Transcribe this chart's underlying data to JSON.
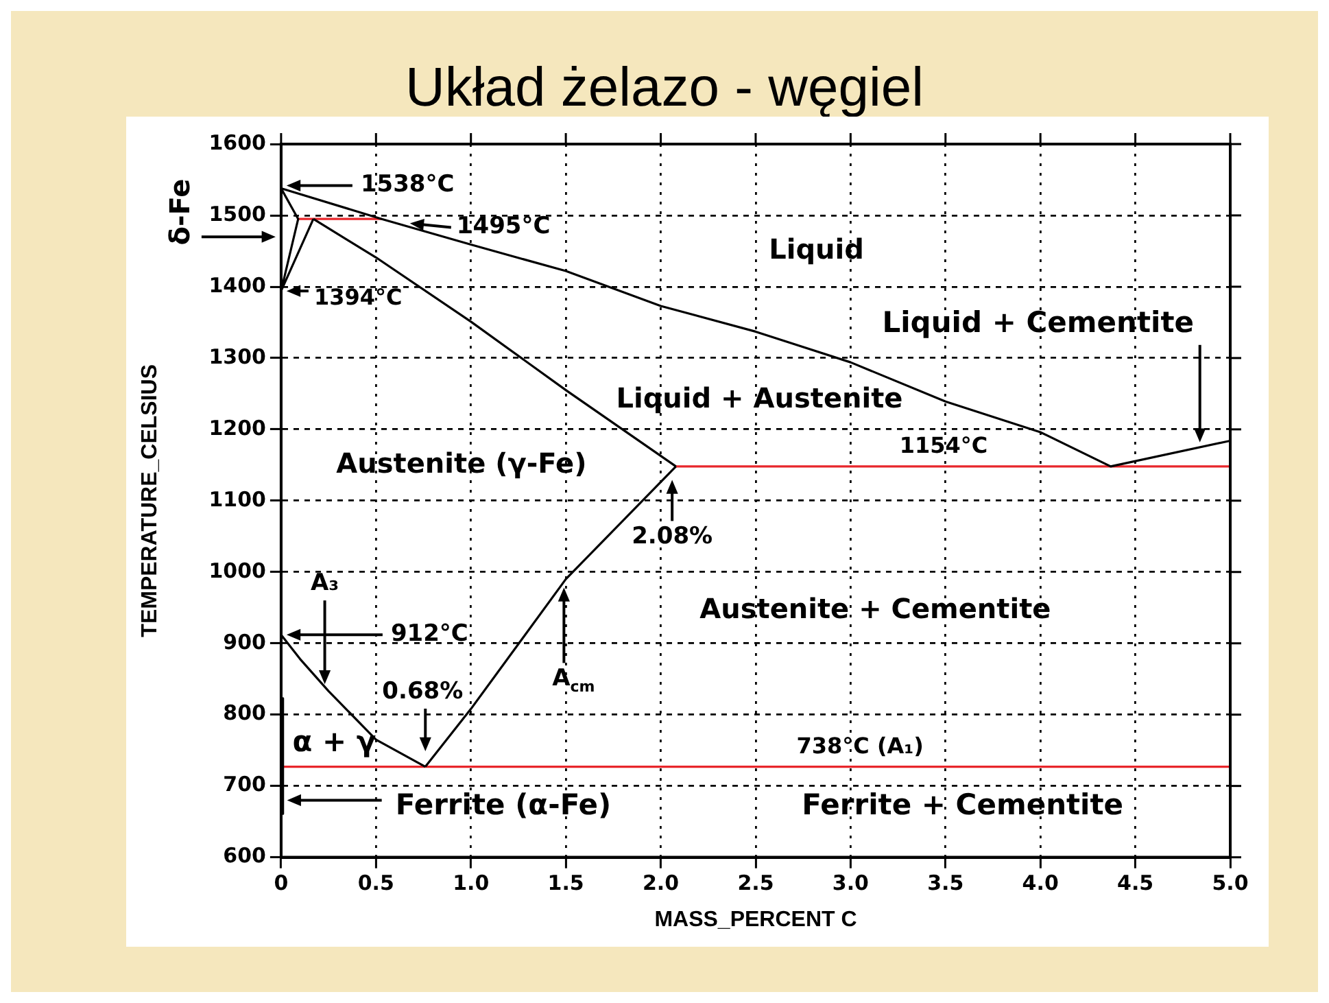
{
  "chart_data": {
    "type": "line",
    "title": "Układ żelazo - węgiel",
    "xlabel": "MASS_PERCENT C",
    "ylabel": "TEMPERATURE_CELSIUS",
    "xlim": [
      0,
      5
    ],
    "xticks": [
      0,
      0.5,
      {
        "value": 1,
        "label": "1.0"
      },
      1.5,
      {
        "value": 2,
        "label": "2.0"
      },
      2.5,
      {
        "value": 3,
        "label": "3.0"
      },
      3.5,
      {
        "value": 4,
        "label": "4.0"
      },
      4.5,
      {
        "value": 5,
        "label": "5.0"
      }
    ],
    "ylim": [
      600,
      1600
    ],
    "yticks": [
      600,
      700,
      800,
      900,
      1000,
      1100,
      1200,
      1300,
      1400,
      1500,
      1600
    ],
    "grid": true,
    "legend": false,
    "marker": "none",
    "line_style": "solid",
    "series": [
      {
        "color": "#000000",
        "x": [
          0,
          0.53,
          1.0,
          1.5,
          2.0,
          2.5,
          3.0,
          3.5,
          4.0,
          4.37,
          5.0
        ],
        "values": [
          1538,
          1495,
          1459,
          1422,
          1373,
          1337,
          1294,
          1239,
          1196,
          1148,
          1184
        ]
      },
      {
        "color": "#000000",
        "x": [
          0.17,
          0.5,
          1.0,
          1.5,
          2.08
        ],
        "values": [
          1495,
          1441,
          1351,
          1255,
          1148
        ]
      },
      {
        "color": "#000000",
        "x": [
          0,
          0.09,
          0,
          0.17
        ],
        "values": [
          1538,
          1495,
          1394,
          1495
        ]
      },
      {
        "color": "#000000",
        "x": [
          0,
          0.1,
          0.25,
          0.5,
          0.76
        ],
        "values": [
          912,
          878,
          833,
          765,
          727
        ]
      },
      {
        "color": "#000000",
        "x": [
          0.76,
          1.0,
          1.5,
          2.08
        ],
        "values": [
          727,
          808,
          990,
          1148
        ]
      },
      {
        "color": "#000000",
        "x": [
          0.01,
          0.01
        ],
        "values": [
          823,
          661
        ]
      },
      {
        "color": "#e8262b",
        "x": [
          0.09,
          0.53
        ],
        "values": [
          1495,
          1495
        ]
      },
      {
        "color": "#e8262b",
        "x": [
          2.08,
          5.0
        ],
        "values": [
          1148,
          1148
        ]
      },
      {
        "color": "#e8262b",
        "x": [
          0.01,
          5.0
        ],
        "values": [
          727,
          727
        ]
      }
    ],
    "annotations": [
      "1538°C",
      "1495°C",
      "1394°C",
      "δ-Fe",
      "912°C",
      "A₃",
      "0.68%",
      "A$_{cm}$",
      "2.08%",
      "1154°C",
      "738°C (A₁)",
      "Liquid + Cementite",
      "Ferrite (α-Fe)",
      "Liquid",
      "Liquid + Austenite",
      "Austenite (γ-Fe)",
      "Austenite + Cementite",
      "Ferrite + Cementite",
      "α + γ"
    ]
  }
}
